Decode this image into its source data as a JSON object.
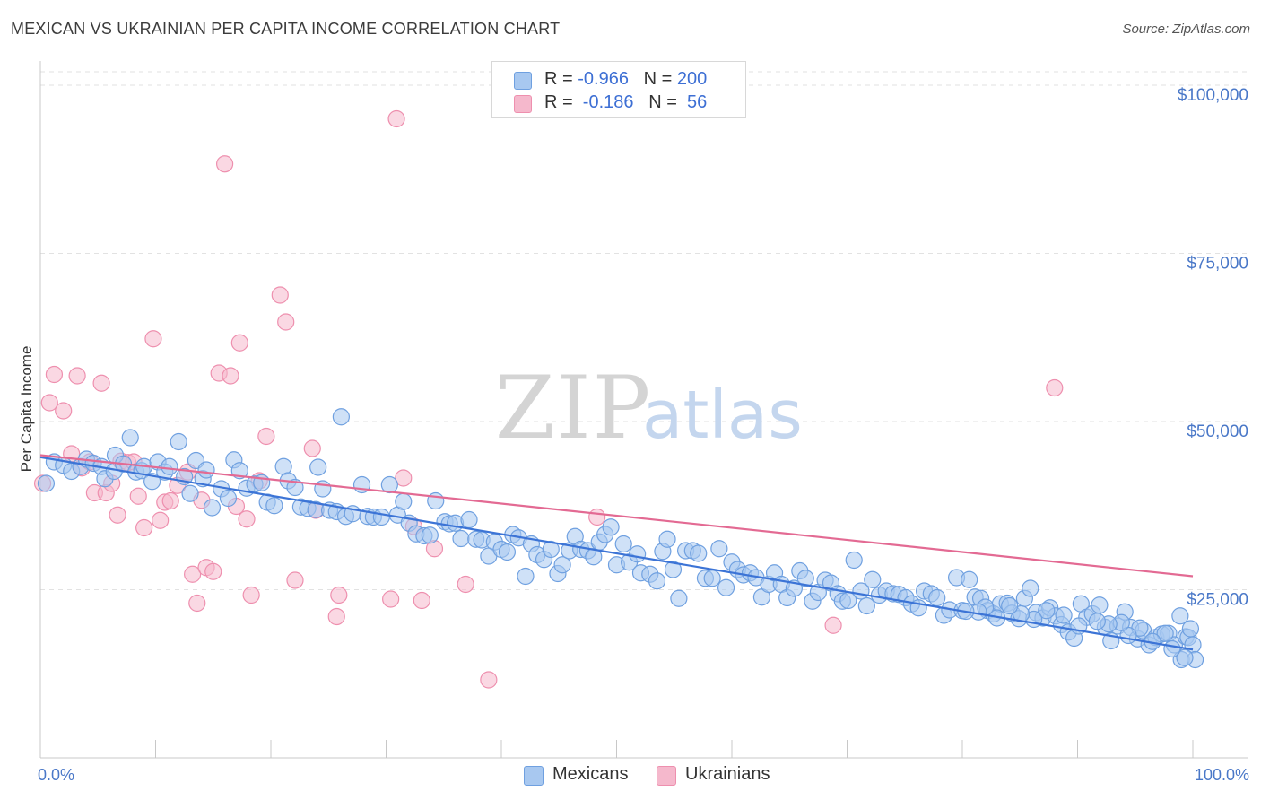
{
  "header": {
    "title": "MEXICAN VS UKRAINIAN PER CAPITA INCOME CORRELATION CHART",
    "source": "Source: ZipAtlas.com"
  },
  "watermark": {
    "zip": "ZIP",
    "atlas": "atlas"
  },
  "legend": {
    "rows": [
      {
        "r_label": "R = ",
        "r_value": "-0.966",
        "n_label": "N = ",
        "n_value": "200",
        "color": "#a8c8f0"
      },
      {
        "r_label": "R = ",
        "r_value": " -0.186",
        "n_label": "N = ",
        "n_value": " 56",
        "color": "#f5b8cc"
      }
    ]
  },
  "bottom_legend": [
    {
      "label": "Mexicans",
      "color": "#a8c8f0"
    },
    {
      "label": "Ukrainians",
      "color": "#f5b8cc"
    }
  ],
  "chart_data": {
    "type": "scatter",
    "ylabel": "Per Capita Income",
    "x_tick_labels": [
      "0.0%",
      "100.0%"
    ],
    "y_tick_labels": [
      "$25,000",
      "$50,000",
      "$75,000",
      "$100,000"
    ],
    "y_ticks": [
      25000,
      50000,
      75000,
      100000
    ],
    "xlim": [
      0,
      100
    ],
    "ylim": [
      0,
      102000
    ],
    "grid": true,
    "series": [
      {
        "name": "Mexicans",
        "color": "#6fa0e0",
        "fill": "#a8c8f0",
        "trend": {
          "x0": 0,
          "y0": 44700,
          "x1": 100,
          "y1": 16100,
          "color": "#3c74d6"
        },
        "points": [
          [
            0.5,
            40800
          ],
          [
            1.2,
            44000
          ],
          [
            2.0,
            43500
          ],
          [
            2.7,
            42600
          ],
          [
            3.5,
            43300
          ],
          [
            4.0,
            44400
          ],
          [
            4.6,
            43800
          ],
          [
            5.3,
            43300
          ],
          [
            5.6,
            41500
          ],
          [
            6.4,
            42600
          ],
          [
            6.5,
            45000
          ],
          [
            7.2,
            43700
          ],
          [
            7.8,
            47600
          ],
          [
            8.3,
            42500
          ],
          [
            8.8,
            42700
          ],
          [
            9.0,
            43300
          ],
          [
            9.7,
            41100
          ],
          [
            10.2,
            44000
          ],
          [
            10.8,
            42500
          ],
          [
            11.2,
            43300
          ],
          [
            12.0,
            47000
          ],
          [
            12.5,
            41800
          ],
          [
            13.0,
            39300
          ],
          [
            13.5,
            44200
          ],
          [
            14.1,
            41500
          ],
          [
            14.4,
            42800
          ],
          [
            14.9,
            37200
          ],
          [
            15.7,
            40000
          ],
          [
            16.3,
            38600
          ],
          [
            16.8,
            44300
          ],
          [
            17.3,
            42700
          ],
          [
            17.9,
            40100
          ],
          [
            18.6,
            40700
          ],
          [
            19.2,
            40900
          ],
          [
            19.7,
            38000
          ],
          [
            20.3,
            37500
          ],
          [
            21.1,
            43300
          ],
          [
            21.5,
            41200
          ],
          [
            22.1,
            40200
          ],
          [
            22.6,
            37300
          ],
          [
            23.2,
            37100
          ],
          [
            23.9,
            36900
          ],
          [
            24.1,
            43200
          ],
          [
            24.5,
            40000
          ],
          [
            25.1,
            36800
          ],
          [
            25.7,
            36600
          ],
          [
            26.1,
            50700
          ],
          [
            26.5,
            35900
          ],
          [
            27.1,
            36300
          ],
          [
            27.9,
            40600
          ],
          [
            28.4,
            35900
          ],
          [
            28.9,
            35800
          ],
          [
            29.6,
            35800
          ],
          [
            30.3,
            40600
          ],
          [
            31.0,
            36100
          ],
          [
            31.5,
            38100
          ],
          [
            32.0,
            34900
          ],
          [
            32.6,
            33300
          ],
          [
            33.3,
            33000
          ],
          [
            33.8,
            33100
          ],
          [
            34.3,
            38200
          ],
          [
            35.1,
            35100
          ],
          [
            35.5,
            34800
          ],
          [
            36.0,
            34900
          ],
          [
            36.5,
            32600
          ],
          [
            37.2,
            35400
          ],
          [
            37.8,
            32500
          ],
          [
            38.3,
            32400
          ],
          [
            38.9,
            30000
          ],
          [
            39.4,
            32100
          ],
          [
            40.0,
            31000
          ],
          [
            40.5,
            30600
          ],
          [
            41.0,
            33200
          ],
          [
            41.5,
            32700
          ],
          [
            42.1,
            27000
          ],
          [
            42.6,
            31800
          ],
          [
            43.1,
            30200
          ],
          [
            43.7,
            29500
          ],
          [
            44.3,
            31000
          ],
          [
            44.9,
            27400
          ],
          [
            45.3,
            28700
          ],
          [
            45.9,
            30800
          ],
          [
            46.4,
            32900
          ],
          [
            46.9,
            31000
          ],
          [
            47.5,
            30800
          ],
          [
            48.0,
            29900
          ],
          [
            48.5,
            32100
          ],
          [
            49.0,
            33200
          ],
          [
            49.5,
            34300
          ],
          [
            50.0,
            28700
          ],
          [
            50.6,
            31800
          ],
          [
            51.1,
            29100
          ],
          [
            51.8,
            30300
          ],
          [
            52.1,
            27500
          ],
          [
            52.9,
            27300
          ],
          [
            53.5,
            26300
          ],
          [
            54.0,
            30700
          ],
          [
            54.4,
            32500
          ],
          [
            54.9,
            28000
          ],
          [
            55.4,
            23700
          ],
          [
            56.0,
            30800
          ],
          [
            56.6,
            30800
          ],
          [
            57.1,
            30400
          ],
          [
            57.7,
            26700
          ],
          [
            58.3,
            26700
          ],
          [
            58.9,
            31100
          ],
          [
            59.5,
            25300
          ],
          [
            60.0,
            29100
          ],
          [
            60.5,
            28000
          ],
          [
            61.0,
            27200
          ],
          [
            61.6,
            27500
          ],
          [
            62.1,
            26800
          ],
          [
            62.6,
            23900
          ],
          [
            63.2,
            25800
          ],
          [
            63.7,
            27500
          ],
          [
            64.3,
            25800
          ],
          [
            64.8,
            23800
          ],
          [
            65.4,
            25200
          ],
          [
            65.9,
            27800
          ],
          [
            66.4,
            26700
          ],
          [
            67.0,
            23300
          ],
          [
            67.5,
            24600
          ],
          [
            68.1,
            26400
          ],
          [
            68.6,
            26000
          ],
          [
            69.2,
            24400
          ],
          [
            69.6,
            23300
          ],
          [
            70.1,
            23400
          ],
          [
            70.6,
            29400
          ],
          [
            71.2,
            24800
          ],
          [
            71.7,
            22600
          ],
          [
            72.2,
            26500
          ],
          [
            72.8,
            24200
          ],
          [
            73.4,
            24800
          ],
          [
            74.0,
            24400
          ],
          [
            74.5,
            24300
          ],
          [
            75.1,
            23800
          ],
          [
            75.6,
            22900
          ],
          [
            76.2,
            22300
          ],
          [
            76.7,
            24800
          ],
          [
            77.3,
            24400
          ],
          [
            77.8,
            23800
          ],
          [
            78.4,
            21200
          ],
          [
            78.9,
            22000
          ],
          [
            79.5,
            26800
          ],
          [
            80.0,
            21900
          ],
          [
            80.6,
            26500
          ],
          [
            81.1,
            23900
          ],
          [
            81.6,
            23700
          ],
          [
            82.2,
            21900
          ],
          [
            82.7,
            21400
          ],
          [
            83.3,
            22900
          ],
          [
            83.9,
            23000
          ],
          [
            84.3,
            21500
          ],
          [
            84.9,
            20700
          ],
          [
            85.4,
            23700
          ],
          [
            85.9,
            25200
          ],
          [
            86.4,
            21600
          ],
          [
            87.0,
            20800
          ],
          [
            87.6,
            22300
          ],
          [
            88.1,
            21100
          ],
          [
            88.6,
            19800
          ],
          [
            89.2,
            18700
          ],
          [
            89.7,
            17800
          ],
          [
            90.3,
            22900
          ],
          [
            90.8,
            20900
          ],
          [
            91.3,
            21400
          ],
          [
            91.9,
            22700
          ],
          [
            92.4,
            19400
          ],
          [
            92.9,
            17400
          ],
          [
            93.5,
            19600
          ],
          [
            94.1,
            21700
          ],
          [
            94.6,
            19400
          ],
          [
            95.2,
            17700
          ],
          [
            95.7,
            18900
          ],
          [
            96.2,
            16800
          ],
          [
            96.8,
            17900
          ],
          [
            97.3,
            18400
          ],
          [
            97.9,
            18500
          ],
          [
            98.4,
            16800
          ],
          [
            98.9,
            21100
          ],
          [
            99.4,
            18000
          ],
          [
            99.6,
            17900
          ],
          [
            99.8,
            19200
          ],
          [
            100.0,
            16800
          ],
          [
            99.0,
            14600
          ],
          [
            100.2,
            14600
          ],
          [
            99.3,
            14900
          ],
          [
            98.2,
            16200
          ],
          [
            97.6,
            18500
          ],
          [
            96.5,
            17300
          ],
          [
            95.4,
            19300
          ],
          [
            94.4,
            18200
          ],
          [
            93.8,
            20100
          ],
          [
            92.7,
            19900
          ],
          [
            91.7,
            20300
          ],
          [
            90.1,
            19600
          ],
          [
            88.8,
            21200
          ],
          [
            87.3,
            21900
          ],
          [
            86.2,
            20600
          ],
          [
            85.1,
            21400
          ],
          [
            84.1,
            22600
          ],
          [
            83.0,
            20800
          ],
          [
            82.0,
            22400
          ],
          [
            81.4,
            21700
          ],
          [
            80.3,
            21800
          ]
        ]
      },
      {
        "name": "Ukrainians",
        "color": "#ee8fae",
        "fill": "#f5b8cc",
        "trend": {
          "x0": 0,
          "y0": 45000,
          "x1": 100,
          "y1": 27000,
          "color": "#e36a93"
        },
        "points": [
          [
            0.2,
            40800
          ],
          [
            0.8,
            52800
          ],
          [
            1.2,
            57000
          ],
          [
            2.0,
            51600
          ],
          [
            2.7,
            45200
          ],
          [
            3.2,
            56800
          ],
          [
            3.6,
            43100
          ],
          [
            4.3,
            44000
          ],
          [
            4.7,
            39400
          ],
          [
            5.3,
            55700
          ],
          [
            5.7,
            39400
          ],
          [
            6.2,
            40800
          ],
          [
            6.7,
            36100
          ],
          [
            7.0,
            44100
          ],
          [
            7.6,
            43900
          ],
          [
            8.1,
            44000
          ],
          [
            8.5,
            38900
          ],
          [
            9.0,
            34200
          ],
          [
            9.8,
            62300
          ],
          [
            10.4,
            35300
          ],
          [
            10.8,
            38000
          ],
          [
            11.3,
            38200
          ],
          [
            11.9,
            40500
          ],
          [
            12.8,
            42500
          ],
          [
            13.2,
            27300
          ],
          [
            13.6,
            23000
          ],
          [
            14.0,
            38300
          ],
          [
            14.4,
            28300
          ],
          [
            15.0,
            27700
          ],
          [
            15.5,
            57200
          ],
          [
            16.0,
            88300
          ],
          [
            16.5,
            56800
          ],
          [
            17.0,
            37400
          ],
          [
            17.3,
            61700
          ],
          [
            17.9,
            35500
          ],
          [
            18.3,
            24200
          ],
          [
            19.0,
            41200
          ],
          [
            19.6,
            47800
          ],
          [
            20.8,
            68800
          ],
          [
            21.3,
            64800
          ],
          [
            22.1,
            26400
          ],
          [
            23.6,
            46000
          ],
          [
            23.9,
            36800
          ],
          [
            25.7,
            21000
          ],
          [
            25.9,
            24200
          ],
          [
            30.4,
            23600
          ],
          [
            30.9,
            95000
          ],
          [
            31.5,
            41600
          ],
          [
            32.4,
            34400
          ],
          [
            33.1,
            23400
          ],
          [
            34.2,
            31100
          ],
          [
            36.9,
            25800
          ],
          [
            38.9,
            11600
          ],
          [
            48.3,
            35800
          ],
          [
            68.8,
            19700
          ],
          [
            88.0,
            55000
          ]
        ]
      }
    ]
  }
}
